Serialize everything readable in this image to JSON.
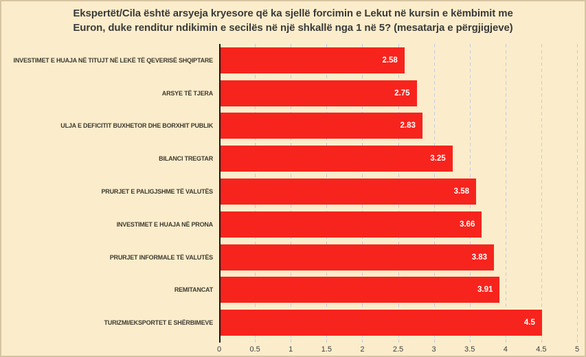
{
  "chart_data": {
    "type": "bar",
    "orientation": "horizontal",
    "title": "Ekspertët/Cila është arsyeja kryesore që ka sjellë forcimin e Lekut në kursin e këmbimit me\nEuron, duke renditur ndikimin e secilës në një shkallë nga 1 në 5? (mesatarja e përgjigjeve)",
    "categories": [
      "INVESTIMET E HUAJA NË TITUJT NË LEKË TË QEVERISË SHQIPTARE",
      "ARSYE TË TJERA",
      "ULJA E DEFICITIT BUXHETOR DHE BORXHIT PUBLIK",
      "BILANCI TREGTAR",
      "PRURJET E PALIGJSHME TË VALUTËS",
      "INVESTIMET E HUAJA NË PRONA",
      "PRURJET INFORMALE TË VALUTËS",
      "REMITANCAT",
      "TURIZMI/EKSPORTET E SHËRBIMEVE"
    ],
    "values": [
      2.58,
      2.75,
      2.83,
      3.25,
      3.58,
      3.66,
      3.83,
      3.91,
      4.5
    ],
    "value_labels": [
      "2.58",
      "2.75",
      "2.83",
      "3.25",
      "3.58",
      "3.66",
      "3.83",
      "3.91",
      "4.5"
    ],
    "xlabel": "",
    "ylabel": "",
    "xlim": [
      0,
      5
    ],
    "x_ticks": [
      "0",
      "0.5",
      "1",
      "1.5",
      "2",
      "2.5",
      "3",
      "3.5",
      "4",
      "4.5",
      "5"
    ],
    "grid": "vertical-dashed",
    "legend": "none"
  },
  "colors": {
    "background": "#fbedcb",
    "border": "#d6c5a2",
    "bar": "#f7241d",
    "grid": "#c2cbdf",
    "axis": "#161616",
    "title_text": "#3a3a3a",
    "label_text": "#3f3a31",
    "tick_text": "#3d3d3d",
    "value_text": "#ffffff"
  }
}
